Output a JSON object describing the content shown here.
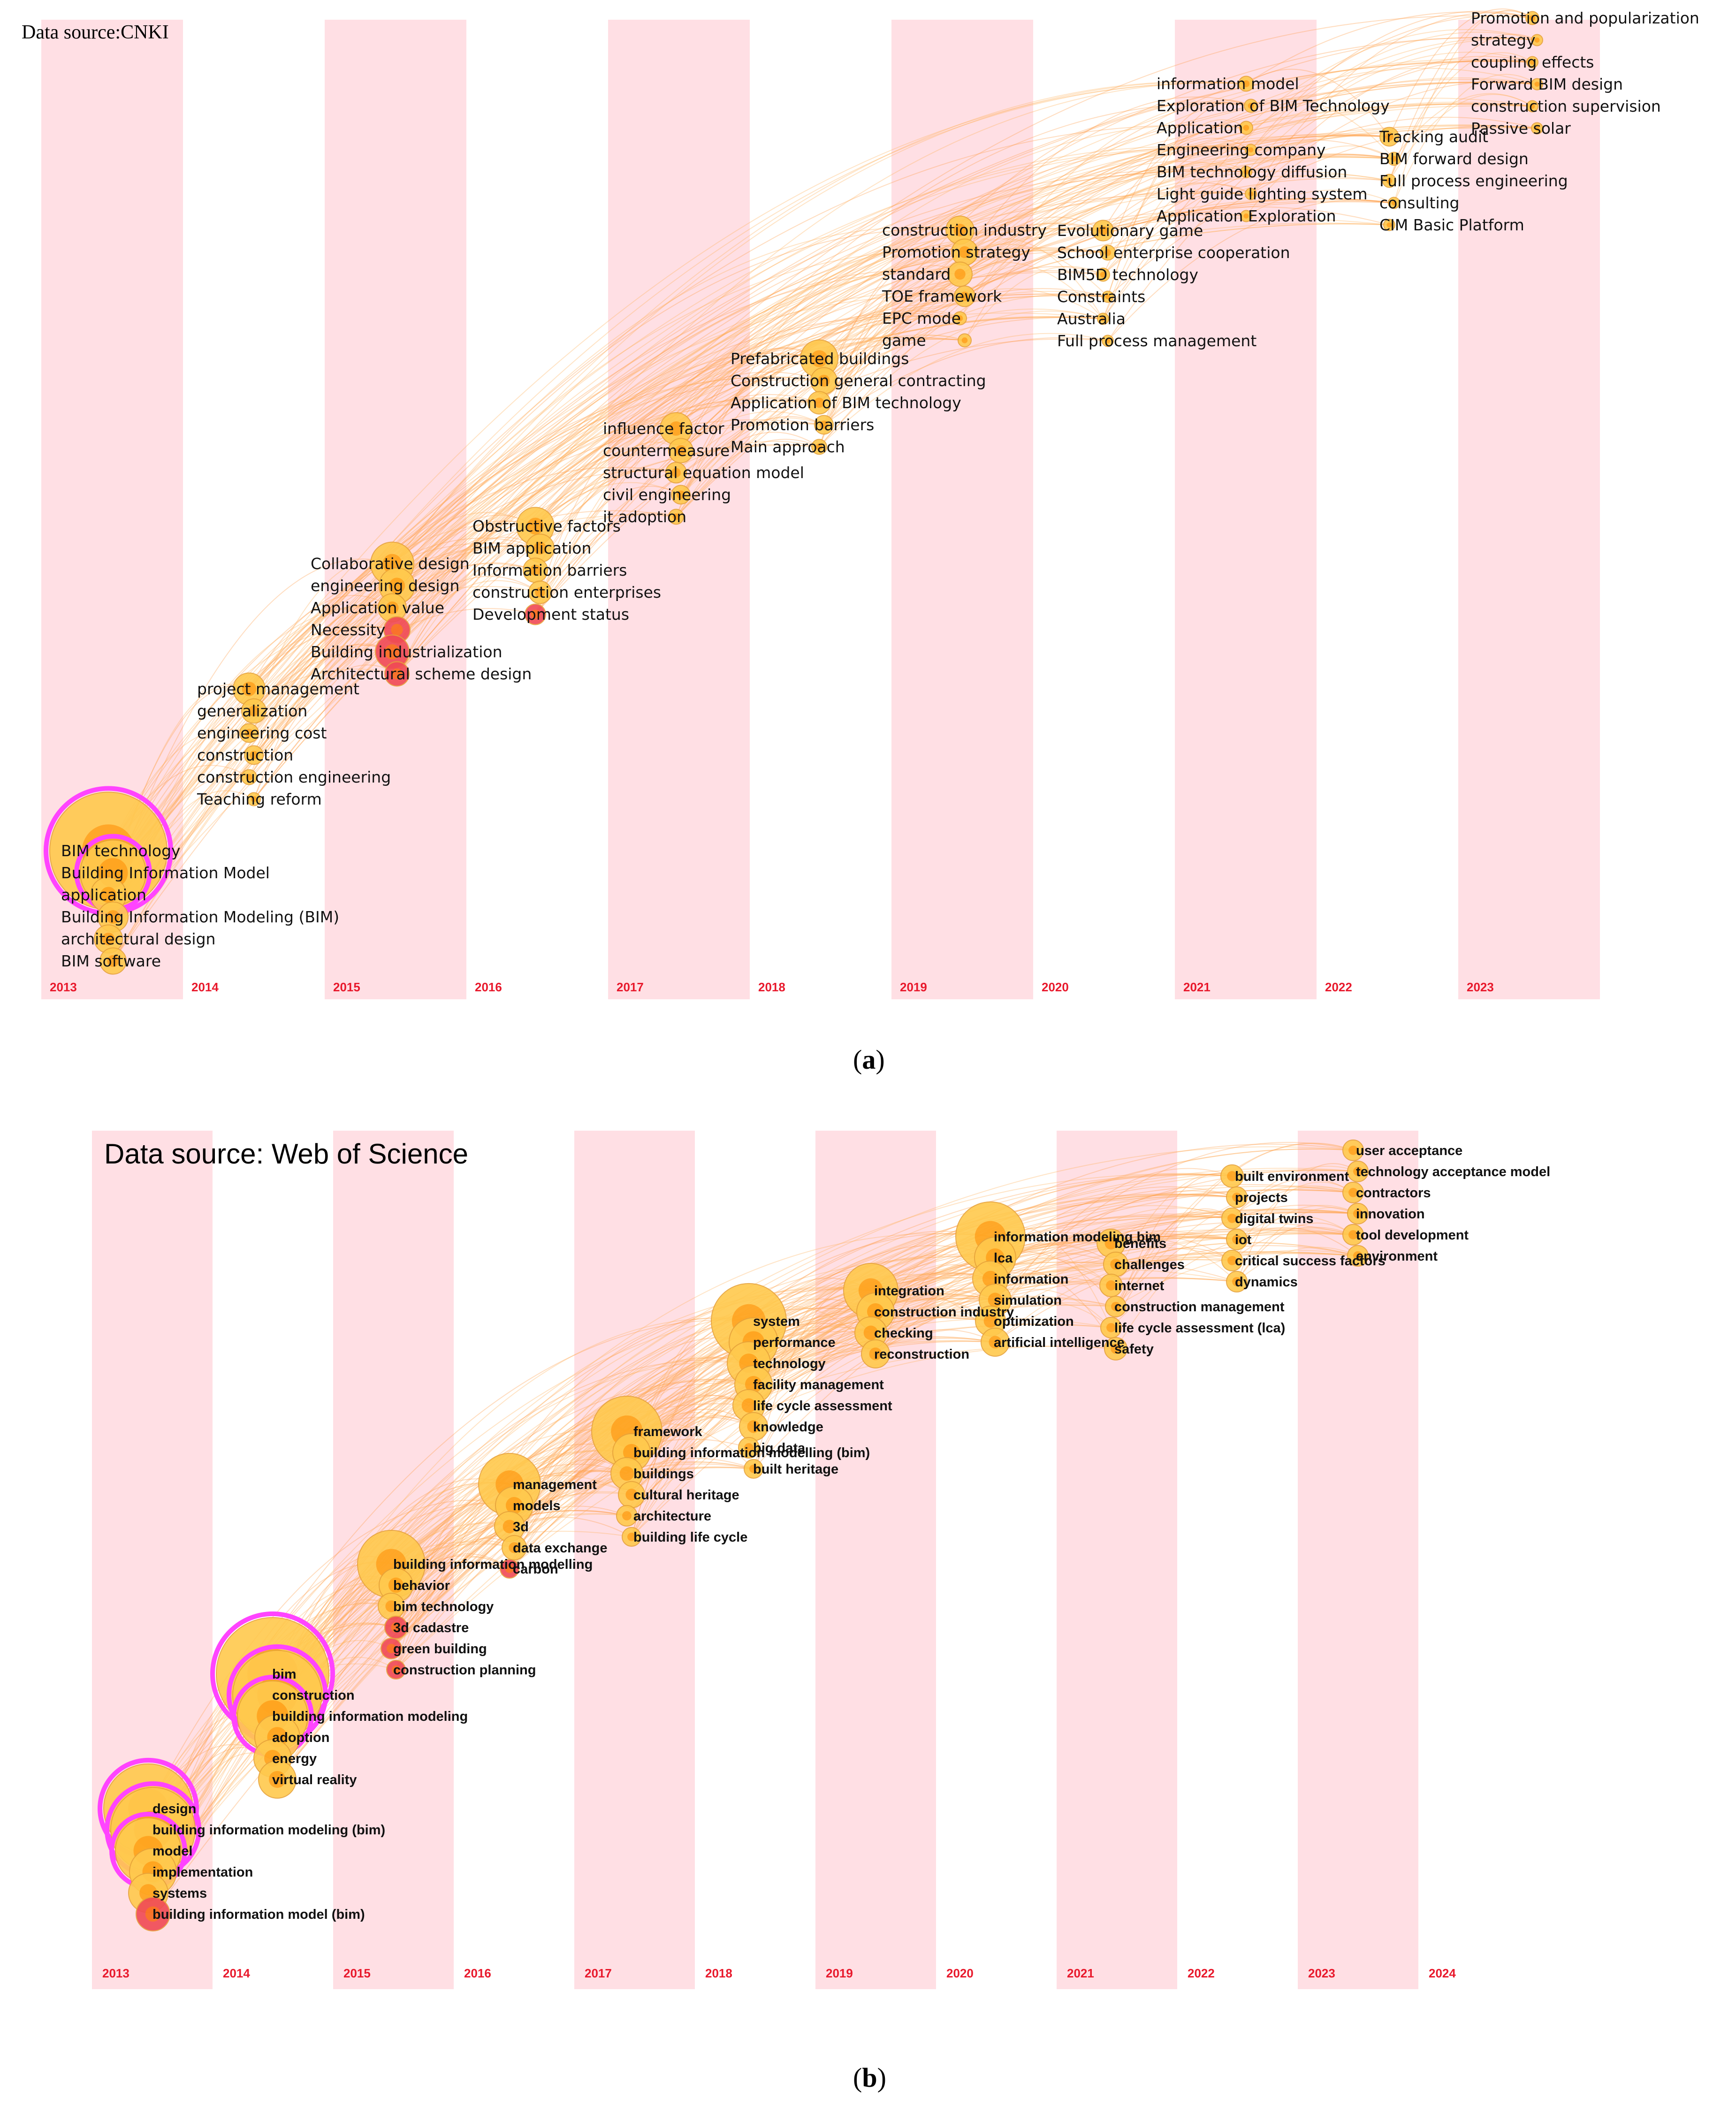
{
  "colors": {
    "band": "#ffdfe4",
    "year": "#e8192c",
    "ring": "#ff44ff",
    "link_a": "#ffb35c",
    "link_b": "#ff9d4a",
    "node_core": "#ff8a00",
    "node_fill": "#ffc94d",
    "node_red": "#f04a55",
    "text": "#111111"
  },
  "panel_a": {
    "source": "Data source:CNKI",
    "caption_letter": "a"
  },
  "panel_b": {
    "source": "Data source: Web of Science",
    "caption_letter": "b"
  },
  "chart_data": [
    {
      "type": "timezone",
      "title": "Data source:CNKI",
      "years": [
        "2013",
        "2014",
        "2015",
        "2016",
        "2017",
        "2018",
        "2019",
        "2020",
        "2021",
        "2022",
        "2023"
      ],
      "groups": [
        {
          "year": "2013",
          "keywords": [
            "BIM technology",
            "Building Information Model",
            "application",
            "Building Information Modeling (BIM)",
            "architectural design",
            "BIM software"
          ]
        },
        {
          "year": "2014",
          "keywords": [
            "project management",
            "generalization",
            "engineering cost",
            "construction",
            "construction engineering",
            "Teaching reform"
          ]
        },
        {
          "year": "2015",
          "keywords": [
            "Collaborative design",
            "engineering design",
            "Application value",
            "Necessity",
            "Building industrialization",
            "Architectural scheme design"
          ]
        },
        {
          "year": "2016",
          "keywords": [
            "Obstructive factors",
            "BIM application",
            "Information barriers",
            "construction enterprises",
            "Development status"
          ]
        },
        {
          "year": "2017",
          "keywords": [
            "influence factor",
            "countermeasure",
            "structural equation model",
            "civil engineering",
            "it adoption"
          ]
        },
        {
          "year": "2018",
          "keywords": [
            "Prefabricated buildings",
            "Construction general contracting",
            "Application of BIM technology",
            "Promotion barriers",
            "Main approach"
          ]
        },
        {
          "year": "2019",
          "keywords": [
            "construction industry",
            "Promotion strategy",
            "standard",
            "TOE framework",
            "EPC mode",
            "game"
          ]
        },
        {
          "year": "2020",
          "keywords": [
            "Evolutionary game",
            "School enterprise cooperation",
            "BIM5D technology",
            "Constraints",
            "Australia",
            "Full process management"
          ]
        },
        {
          "year": "2021",
          "keywords": [
            "information model",
            "Exploration of BIM Technology",
            "Application",
            "Engineering company",
            "BIM technology diffusion",
            "Light guide lighting system",
            "Application Exploration"
          ]
        },
        {
          "year": "2022",
          "keywords": [
            "Tracking audit",
            "BIM forward design",
            "Full process engineering",
            "consulting",
            "CIM Basic Platform"
          ]
        },
        {
          "year": "2023",
          "keywords": [
            "Promotion and popularization",
            "strategy",
            "coupling effects",
            "Forward BIM design",
            "construction supervision",
            "Passive solar"
          ]
        }
      ]
    },
    {
      "type": "timezone",
      "title": "Data source: Web of Science",
      "years": [
        "2013",
        "2014",
        "2015",
        "2016",
        "2017",
        "2018",
        "2019",
        "2020",
        "2021",
        "2022",
        "2023",
        "2024"
      ],
      "groups": [
        {
          "year": "2013",
          "keywords": [
            "design",
            "building information modeling (bim)",
            "model",
            "implementation",
            "systems",
            "building information model (bim)"
          ]
        },
        {
          "year": "2014",
          "keywords": [
            "bim",
            "construction",
            "building information modeling",
            "adoption",
            "energy",
            "virtual reality"
          ]
        },
        {
          "year": "2015",
          "keywords": [
            "building information modelling",
            "behavior",
            "bim technology",
            "3d cadastre",
            "green building",
            "construction planning"
          ]
        },
        {
          "year": "2016",
          "keywords": [
            "management",
            "models",
            "3d",
            "data exchange",
            "carbon"
          ]
        },
        {
          "year": "2017",
          "keywords": [
            "framework",
            "building information modelling (bim)",
            "buildings",
            "cultural heritage",
            "architecture",
            "building life cycle"
          ]
        },
        {
          "year": "2018",
          "keywords": [
            "system",
            "performance",
            "technology",
            "facility management",
            "life cycle assessment",
            "knowledge",
            "big data",
            "built heritage"
          ]
        },
        {
          "year": "2019",
          "keywords": [
            "integration",
            "construction industry",
            "checking",
            "reconstruction"
          ]
        },
        {
          "year": "2020",
          "keywords": [
            "information modeling bim",
            "lca",
            "information",
            "simulation",
            "optimization",
            "artificial intelligence"
          ]
        },
        {
          "year": "2021",
          "keywords": [
            "benefits",
            "challenges",
            "internet",
            "construction management",
            "life cycle assessment (lca)",
            "safety"
          ]
        },
        {
          "year": "2022",
          "keywords": [
            "built environment",
            "projects",
            "digital twins",
            "iot",
            "critical success factors",
            "dynamics"
          ]
        },
        {
          "year": "2023",
          "keywords": [
            "user acceptance",
            "technology acceptance model",
            "contractors",
            "innovation",
            "tool development",
            "environment"
          ]
        }
      ]
    }
  ]
}
